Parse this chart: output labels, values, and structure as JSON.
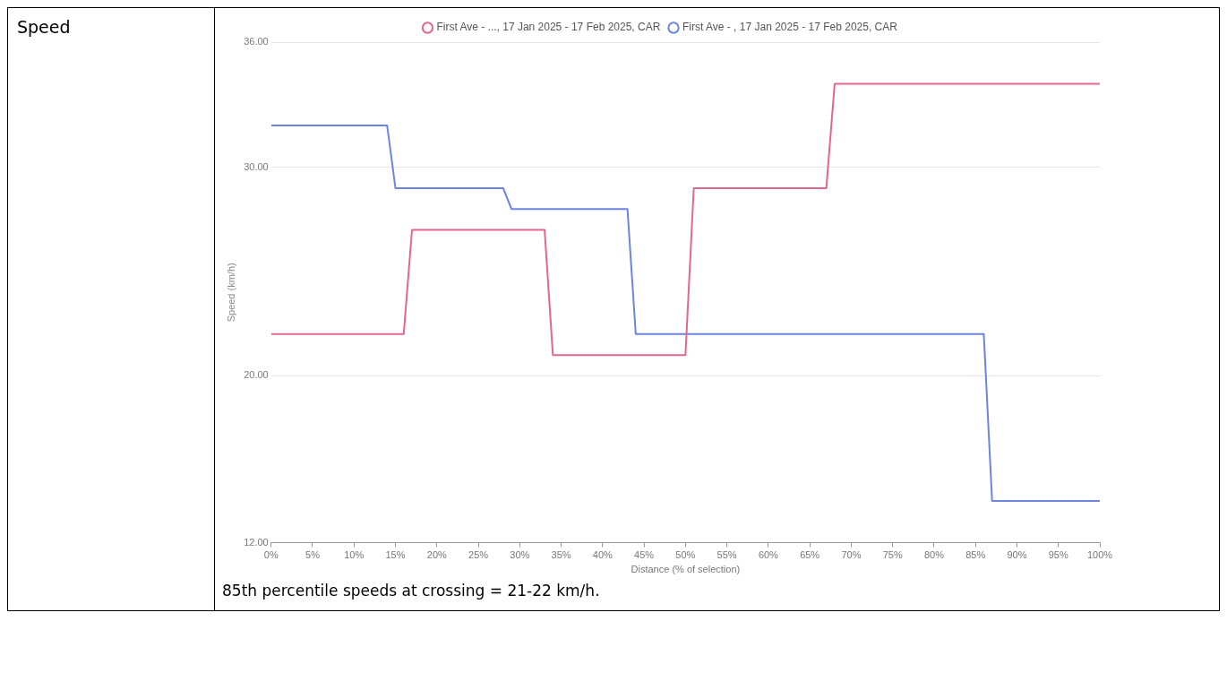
{
  "chart_data": {
    "type": "line",
    "title": "Speed",
    "xlabel": "Distance (% of selection)",
    "ylabel": "Speed (km/h)",
    "xlim": [
      0,
      100
    ],
    "ylim": [
      12,
      36
    ],
    "xticks": [
      {
        "value": 0,
        "label": "0%"
      },
      {
        "value": 5,
        "label": "5%"
      },
      {
        "value": 10,
        "label": "10%"
      },
      {
        "value": 15,
        "label": "15%"
      },
      {
        "value": 20,
        "label": "20%"
      },
      {
        "value": 25,
        "label": "25%"
      },
      {
        "value": 30,
        "label": "30%"
      },
      {
        "value": 35,
        "label": "35%"
      },
      {
        "value": 40,
        "label": "40%"
      },
      {
        "value": 45,
        "label": "45%"
      },
      {
        "value": 50,
        "label": "50%"
      },
      {
        "value": 55,
        "label": "55%"
      },
      {
        "value": 60,
        "label": "60%"
      },
      {
        "value": 65,
        "label": "65%"
      },
      {
        "value": 70,
        "label": "70%"
      },
      {
        "value": 75,
        "label": "75%"
      },
      {
        "value": 80,
        "label": "80%"
      },
      {
        "value": 85,
        "label": "85%"
      },
      {
        "value": 90,
        "label": "90%"
      },
      {
        "value": 95,
        "label": "95%"
      },
      {
        "value": 100,
        "label": "100%"
      }
    ],
    "yticks": [
      {
        "value": 12,
        "label": "12.00"
      },
      {
        "value": 20,
        "label": "20.00"
      },
      {
        "value": 30,
        "label": "30.00"
      },
      {
        "value": 36,
        "label": "36.00"
      }
    ],
    "series": [
      {
        "name": "First Ave - ..., 17 Jan 2025 - 17 Feb 2025, CAR",
        "color": "#e0678f",
        "x": [
          0,
          16,
          17,
          33,
          34,
          50,
          51,
          67,
          68,
          100
        ],
        "values": [
          22,
          22,
          27,
          27,
          21,
          21,
          29,
          29,
          34,
          34
        ]
      },
      {
        "name": "First Ave - , 17 Jan 2025 - 17 Feb 2025, CAR",
        "color": "#6b84e0",
        "x": [
          0,
          14,
          15,
          28,
          29,
          43,
          44,
          86,
          87,
          100
        ],
        "values": [
          32,
          32,
          29,
          29,
          28,
          28,
          22,
          22,
          14,
          14
        ]
      }
    ],
    "grid": "y",
    "legend": "top",
    "marker": "none",
    "line_style": "solid",
    "annotations": [
      "85th percentile speeds at crossing = 21-22 km/h."
    ]
  }
}
